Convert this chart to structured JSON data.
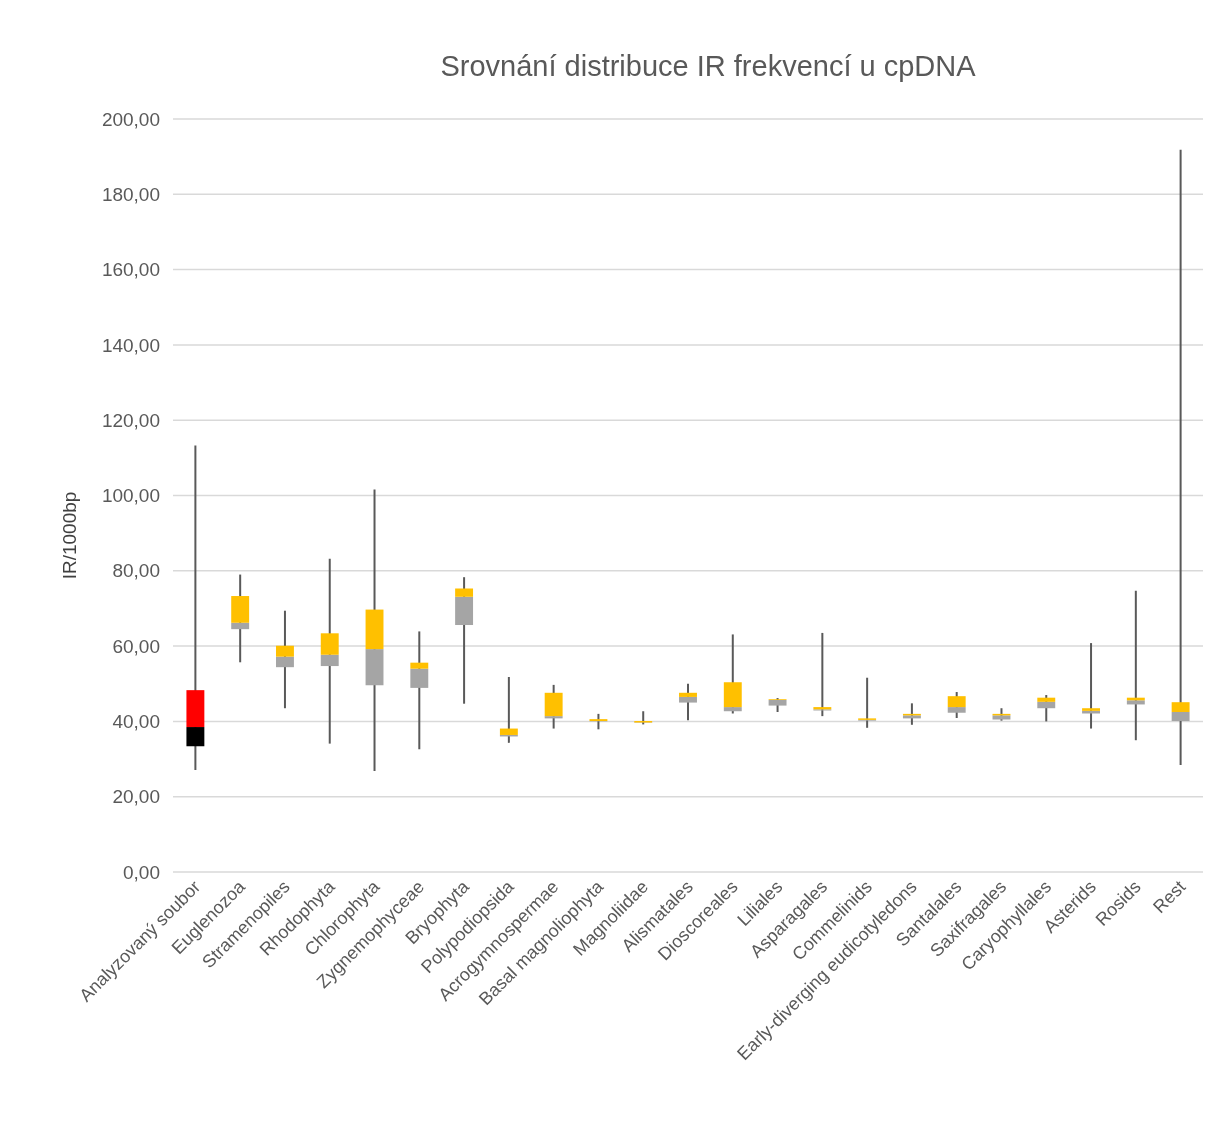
{
  "chart_data": {
    "type": "box",
    "title": "Srovnání distribuce IR frekvencí u cpDNA",
    "ylabel": "IR/1000bp",
    "grid": "y",
    "categories": [
      "Analyzovaný soubor",
      "Euglenozoa",
      "Stramenopiles",
      "Rhodophyta",
      "Chlorophyta",
      "Zygnemophyceae",
      "Bryophyta",
      "Polypodiopsida",
      "Acrogymnospermae",
      "Basal magnoliophyta",
      "Magnoliidae",
      "Alismatales",
      "Dioscoreales",
      "Liliales",
      "Asparagales",
      "Commelinids",
      "Early-diverging eudicotyledons",
      "Santalales",
      "Saxifragales",
      "Caryophyllales",
      "Asterids",
      "Rosids",
      "Rest"
    ],
    "ylim": [
      0,
      200
    ],
    "yticks": [
      {
        "value": 0,
        "label": "0,00"
      },
      {
        "value": 20,
        "label": "20,00"
      },
      {
        "value": 40,
        "label": "40,00"
      },
      {
        "value": 60,
        "label": "60,00"
      },
      {
        "value": 80,
        "label": "80,00"
      },
      {
        "value": 100,
        "label": "100,00"
      },
      {
        "value": 120,
        "label": "120,00"
      },
      {
        "value": 140,
        "label": "140,00"
      },
      {
        "value": 160,
        "label": "160,00"
      },
      {
        "value": 180,
        "label": "180,00"
      },
      {
        "value": 200,
        "label": "200,00"
      }
    ],
    "colors": [
      [
        "#000000",
        "#ff0000"
      ],
      [
        "#a5a5a5",
        "#ffc000"
      ],
      [
        "#a5a5a5",
        "#ffc000"
      ],
      [
        "#a5a5a5",
        "#ffc000"
      ],
      [
        "#a5a5a5",
        "#ffc000"
      ],
      [
        "#a5a5a5",
        "#ffc000"
      ],
      [
        "#a5a5a5",
        "#ffc000"
      ],
      [
        "#a5a5a5",
        "#ffc000"
      ],
      [
        "#a5a5a5",
        "#ffc000"
      ],
      [
        "#a5a5a5",
        "#ffc000"
      ],
      [
        "#a5a5a5",
        "#ffc000"
      ],
      [
        "#a5a5a5",
        "#ffc000"
      ],
      [
        "#a5a5a5",
        "#ffc000"
      ],
      [
        "#a5a5a5",
        "#ffc000"
      ],
      [
        "#a5a5a5",
        "#ffc000"
      ],
      [
        "#a5a5a5",
        "#ffc000"
      ],
      [
        "#a5a5a5",
        "#ffc000"
      ],
      [
        "#a5a5a5",
        "#ffc000"
      ],
      [
        "#a5a5a5",
        "#ffc000"
      ],
      [
        "#a5a5a5",
        "#ffc000"
      ],
      [
        "#a5a5a5",
        "#ffc000"
      ],
      [
        "#a5a5a5",
        "#ffc000"
      ],
      [
        "#a5a5a5",
        "#ffc000"
      ]
    ],
    "boxes": [
      {
        "low": 27.1,
        "q1": 33.4,
        "median": 38.5,
        "q3": 48.3,
        "high": 113.3
      },
      {
        "low": 55.7,
        "q1": 64.5,
        "median": 66.2,
        "q3": 73.3,
        "high": 79.0
      },
      {
        "low": 43.5,
        "q1": 54.4,
        "median": 57.2,
        "q3": 60.1,
        "high": 69.4
      },
      {
        "low": 34.1,
        "q1": 54.7,
        "median": 57.7,
        "q3": 63.4,
        "high": 83.2
      },
      {
        "low": 26.8,
        "q1": 49.6,
        "median": 59.2,
        "q3": 69.7,
        "high": 101.6
      },
      {
        "low": 32.6,
        "q1": 48.9,
        "median": 54.0,
        "q3": 55.6,
        "high": 63.9
      },
      {
        "low": 44.7,
        "q1": 65.6,
        "median": 73.1,
        "q3": 75.3,
        "high": 78.3
      },
      {
        "low": 34.3,
        "q1": 36.0,
        "median": 36.4,
        "q3": 38.1,
        "high": 51.8
      },
      {
        "low": 38.1,
        "q1": 40.8,
        "median": 41.4,
        "q3": 47.6,
        "high": 49.7
      },
      {
        "low": 37.9,
        "q1": 40.0,
        "median": 40.1,
        "q3": 40.6,
        "high": 42.0
      },
      {
        "low": 39.2,
        "q1": 39.6,
        "median": 39.7,
        "q3": 40.1,
        "high": 42.7
      },
      {
        "low": 40.3,
        "q1": 45.0,
        "median": 46.5,
        "q3": 47.6,
        "high": 50.0
      },
      {
        "low": 42.1,
        "q1": 42.7,
        "median": 43.8,
        "q3": 50.4,
        "high": 63.1
      },
      {
        "low": 42.5,
        "q1": 44.2,
        "median": 45.7,
        "q3": 45.9,
        "high": 46.2
      },
      {
        "low": 41.4,
        "q1": 42.9,
        "median": 43.2,
        "q3": 43.8,
        "high": 63.5
      },
      {
        "low": 38.3,
        "q1": 40.2,
        "median": 40.4,
        "q3": 40.8,
        "high": 51.6
      },
      {
        "low": 39.1,
        "q1": 40.8,
        "median": 41.6,
        "q3": 42.0,
        "high": 44.8
      },
      {
        "low": 40.9,
        "q1": 42.3,
        "median": 43.8,
        "q3": 46.7,
        "high": 47.8
      },
      {
        "low": 40.2,
        "q1": 40.5,
        "median": 41.6,
        "q3": 42.0,
        "high": 43.5
      },
      {
        "low": 40.0,
        "q1": 43.5,
        "median": 45.2,
        "q3": 46.3,
        "high": 47.0
      },
      {
        "low": 38.1,
        "q1": 42.1,
        "median": 42.8,
        "q3": 43.5,
        "high": 60.8
      },
      {
        "low": 35.0,
        "q1": 44.5,
        "median": 45.6,
        "q3": 46.3,
        "high": 74.7
      },
      {
        "low": 28.4,
        "q1": 40.1,
        "median": 42.5,
        "q3": 45.1,
        "high": 191.8
      }
    ]
  }
}
